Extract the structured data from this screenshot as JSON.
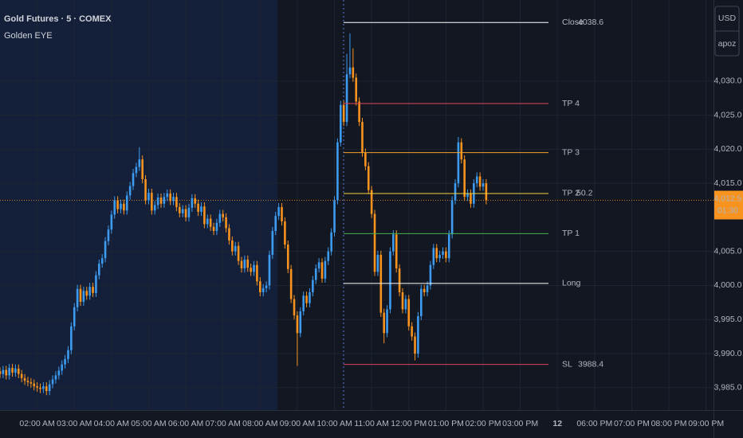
{
  "chart_data": {
    "type": "candlestick",
    "title": "Gold Futures · 5 · COMEX",
    "subtitle": "Golden EYE",
    "currency": "USD",
    "account": "apoz",
    "up_color": "#3d9bf0",
    "down_color": "#f7931e",
    "grid": true,
    "xlim": [
      60,
      1212
    ],
    "ylim": [
      3981.7,
      4041.9
    ],
    "xticks": [
      {
        "value": 120,
        "label": "02:00 AM"
      },
      {
        "value": 180,
        "label": "03:00 AM"
      },
      {
        "value": 240,
        "label": "04:00 AM"
      },
      {
        "value": 300,
        "label": "05:00 AM"
      },
      {
        "value": 360,
        "label": "06:00 AM"
      },
      {
        "value": 420,
        "label": "07:00 AM"
      },
      {
        "value": 480,
        "label": "08:00 AM"
      },
      {
        "value": 540,
        "label": "09:00 AM"
      },
      {
        "value": 600,
        "label": "10:00 AM"
      },
      {
        "value": 660,
        "label": "11:00 AM"
      },
      {
        "value": 720,
        "label": "12:00 PM"
      },
      {
        "value": 780,
        "label": "01:00 PM"
      },
      {
        "value": 840,
        "label": "02:00 PM"
      },
      {
        "value": 900,
        "label": "03:00 PM"
      },
      {
        "value": 960,
        "label": "12"
      },
      {
        "value": 1020,
        "label": "06:00 PM"
      },
      {
        "value": 1080,
        "label": "07:00 PM"
      },
      {
        "value": 1140,
        "label": "08:00 PM"
      },
      {
        "value": 1200,
        "label": "09:00 PM"
      }
    ],
    "yticks": [
      {
        "value": 3985,
        "label": "3,985.0"
      },
      {
        "value": 3990,
        "label": "3,990.0"
      },
      {
        "value": 3995,
        "label": "3,995.0"
      },
      {
        "value": 4000,
        "label": "4,000.0"
      },
      {
        "value": 4005,
        "label": "4,005.0"
      },
      {
        "value": 4015,
        "label": "4,015.0"
      },
      {
        "value": 4020,
        "label": "4,020.0"
      },
      {
        "value": 4025,
        "label": "4,025.0"
      },
      {
        "value": 4030,
        "label": "4,030.0"
      }
    ],
    "last_price": {
      "value": 4012.5,
      "label": "4,012.5",
      "countdown": "01:30",
      "color": "#f7931e"
    },
    "levels": [
      {
        "name": "Close",
        "value": 4038.6,
        "color": "#ffffff",
        "show_value": true
      },
      {
        "name": "TP 4",
        "value": 4026.7,
        "color": "#e0455a"
      },
      {
        "name": "TP 3",
        "value": 4019.5,
        "color": "#f5a02a"
      },
      {
        "name": "TP 2",
        "value": 4013.5,
        "color": "#f2d43a",
        "ratio": 50.2,
        "ratio_color": "#c25fe0"
      },
      {
        "name": "TP 1",
        "value": 4007.6,
        "color": "#4caf50"
      },
      {
        "name": "Long",
        "value": 4000.3,
        "color": "#ffffff"
      },
      {
        "name": "SL",
        "value": 3988.4,
        "color": "#e0455a",
        "show_value": true
      }
    ],
    "x": [
      60,
      65,
      70,
      75,
      80,
      85,
      90,
      95,
      100,
      105,
      110,
      115,
      120,
      125,
      130,
      135,
      140,
      145,
      150,
      155,
      160,
      165,
      170,
      175,
      180,
      185,
      190,
      195,
      200,
      205,
      210,
      215,
      220,
      225,
      230,
      235,
      240,
      245,
      250,
      255,
      260,
      265,
      270,
      275,
      280,
      285,
      290,
      295,
      300,
      305,
      310,
      315,
      320,
      325,
      330,
      335,
      340,
      345,
      350,
      355,
      360,
      365,
      370,
      375,
      380,
      385,
      390,
      395,
      400,
      405,
      410,
      415,
      420,
      425,
      430,
      435,
      440,
      445,
      450,
      455,
      460,
      465,
      470,
      475,
      480,
      485,
      490,
      495,
      500,
      505,
      510,
      515,
      520,
      525,
      530,
      535,
      540,
      545,
      550,
      555,
      560,
      565,
      570,
      575,
      580,
      585,
      590,
      595,
      600,
      605,
      610,
      615,
      620,
      625,
      630,
      635,
      640,
      645,
      650,
      655,
      660,
      665,
      670,
      675,
      680,
      685,
      690,
      695,
      700,
      705,
      710,
      715,
      720,
      725,
      730,
      735,
      740,
      745,
      750,
      755,
      760,
      765,
      770,
      775,
      780,
      785,
      790,
      795,
      800,
      805,
      810,
      815,
      820,
      825,
      830,
      835,
      840,
      845
    ],
    "open": [
      3987.4,
      3987.0,
      3987.6,
      3986.8,
      3987.9,
      3987.2,
      3987.8,
      3987.0,
      3986.4,
      3986.0,
      3985.8,
      3985.6,
      3985.2,
      3985.0,
      3984.8,
      3985.2,
      3984.5,
      3985.5,
      3986.2,
      3986.8,
      3987.5,
      3988.4,
      3989.2,
      3990.5,
      3994.0,
      3996.8,
      3999.5,
      3997.6,
      3999.2,
      3998.5,
      3999.8,
      3998.9,
      4001.5,
      4003.2,
      4004.0,
      4006.5,
      4008.2,
      4010.4,
      4012.5,
      4011.2,
      4012.0,
      4011.0,
      4013.2,
      4014.6,
      4016.5,
      4017.4,
      4018.5,
      4015.6,
      4012.5,
      4013.6,
      4011.0,
      4011.8,
      4012.9,
      4012.0,
      4013.0,
      4013.5,
      4012.4,
      4013.0,
      4011.5,
      4010.6,
      4011.2,
      4010.0,
      4011.4,
      4012.8,
      4012.0,
      4010.8,
      4011.6,
      4009.0,
      4009.8,
      4008.6,
      4008.0,
      4009.2,
      4010.5,
      4010.0,
      4008.4,
      4006.6,
      4005.0,
      4005.8,
      4003.6,
      4002.5,
      4003.8,
      4002.6,
      4002.0,
      4003.0,
      4000.6,
      3999.0,
      3999.6,
      4000.0,
      4004.5,
      4008.0,
      4010.2,
      4011.5,
      4009.4,
      4006.0,
      4002.4,
      3998.0,
      3995.6,
      3993.0,
      3996.2,
      3998.5,
      3997.4,
      3999.0,
      4000.8,
      4002.5,
      4003.4,
      4001.0,
      4003.6,
      4005.0,
      4007.8,
      4012.5,
      4021.0,
      4026.5,
      4024.0,
      4031.0,
      4032.0,
      4030.5,
      4027.0,
      4024.0,
      4019.5,
      4017.5,
      4014.0,
      4010.5,
      4002.0,
      4004.5,
      3996.0,
      3993.0,
      3996.5,
      4005.0,
      4007.5,
      4002.5,
      3999.0,
      3996.5,
      3998.0,
      3994.0,
      3992.5,
      3990.0,
      3995.5,
      3999.5,
      3999.0,
      4000.0,
      4003.0,
      4005.5,
      4004.0,
      4004.5,
      4005.0,
      4004.0,
      4007.5,
      4012.5,
      4015.0,
      4021.0,
      4018.5,
      4013.0,
      4013.5,
      4012.0,
      4015.0,
      4016.0,
      4014.5,
      4015.0
    ],
    "high": [
      3988.0,
      3988.2,
      3988.2,
      3988.5,
      3988.5,
      3988.4,
      3988.4,
      3987.6,
      3987.0,
      3986.6,
      3986.4,
      3986.2,
      3985.8,
      3985.6,
      3985.8,
      3985.8,
      3986.1,
      3986.8,
      3987.4,
      3988.1,
      3989.0,
      3989.8,
      3991.1,
      3994.6,
      3997.4,
      4000.1,
      4000.1,
      3999.8,
      3999.8,
      4000.4,
      4000.4,
      4002.1,
      4003.8,
      4004.6,
      4007.1,
      4008.8,
      4011.0,
      4013.1,
      4013.1,
      4012.6,
      4012.6,
      4013.8,
      4015.2,
      4017.1,
      4018.0,
      4020.3,
      4019.1,
      4016.2,
      4014.2,
      4014.2,
      4012.4,
      4013.5,
      4013.5,
      4013.6,
      4014.1,
      4014.1,
      4013.6,
      4013.6,
      4012.1,
      4011.8,
      4011.8,
      4012.0,
      4013.4,
      4013.4,
      4012.6,
      4012.2,
      4012.2,
      4010.4,
      4010.4,
      4009.2,
      4009.8,
      4011.1,
      4011.1,
      4010.6,
      4009.0,
      4007.2,
      4006.4,
      4006.4,
      4004.2,
      4004.4,
      4004.4,
      4003.2,
      4003.6,
      4003.6,
      4001.2,
      4000.2,
      4000.6,
      4005.1,
      4008.6,
      4010.8,
      4012.1,
      4012.1,
      4010.0,
      4006.6,
      4003.0,
      3998.6,
      3996.2,
      3996.8,
      3999.1,
      3999.1,
      3999.6,
      4001.4,
      4003.1,
      4004.0,
      4004.0,
      4004.2,
      4005.6,
      4008.4,
      4013.1,
      4021.6,
      4027.1,
      4027.1,
      4034.0,
      4037.0,
      4034.8,
      4031.1,
      4027.6,
      4024.6,
      4020.1,
      4018.1,
      4014.6,
      4011.1,
      4005.1,
      4005.1,
      3996.6,
      3997.1,
      4005.6,
      4008.1,
      4008.1,
      4003.1,
      3999.6,
      3998.6,
      3998.6,
      3994.6,
      3993.1,
      3996.1,
      4000.1,
      4000.1,
      4000.6,
      4003.6,
      4006.1,
      4006.1,
      4005.1,
      4005.6,
      4005.6,
      4008.1,
      4013.1,
      4015.6,
      4021.8,
      4021.6,
      4019.1,
      4014.1,
      4014.1,
      4015.6,
      4016.6,
      4016.6,
      4015.6,
      4015.6
    ],
    "low": [
      3986.4,
      3986.4,
      3986.2,
      3986.2,
      3986.6,
      3986.6,
      3986.4,
      3985.8,
      3985.4,
      3985.2,
      3985.0,
      3984.6,
      3984.4,
      3984.2,
      3984.2,
      3983.9,
      3983.9,
      3984.9,
      3985.6,
      3986.2,
      3986.9,
      3987.8,
      3988.6,
      3989.9,
      3993.4,
      3996.2,
      3997.0,
      3997.0,
      3997.9,
      3997.9,
      3998.3,
      3998.3,
      4000.9,
      4002.6,
      4003.4,
      4005.9,
      4007.6,
      4009.8,
      4010.6,
      4010.6,
      4010.4,
      4010.4,
      4012.6,
      4014.0,
      4015.9,
      4016.8,
      4015.0,
      4011.9,
      4011.9,
      4010.4,
      4010.4,
      4011.2,
      4011.4,
      4011.4,
      4012.4,
      4011.8,
      4011.8,
      4010.9,
      4010.0,
      4010.0,
      4009.4,
      4009.4,
      4010.8,
      4011.4,
      4010.2,
      4010.2,
      4008.4,
      4008.4,
      4008.0,
      4007.4,
      4007.4,
      4008.6,
      4009.4,
      4007.8,
      4006.0,
      4004.4,
      4004.4,
      4003.0,
      4001.9,
      4001.9,
      4002.0,
      4001.4,
      4001.4,
      4000.0,
      3998.4,
      3998.4,
      3999.0,
      3999.4,
      4003.9,
      4007.4,
      4009.6,
      4008.8,
      4005.4,
      4001.8,
      3997.4,
      3995.0,
      3988.2,
      3992.4,
      3995.6,
      3996.8,
      3996.8,
      3998.4,
      4000.2,
      4001.9,
      4000.4,
      4000.4,
      4003.0,
      4004.4,
      4007.2,
      4011.9,
      4020.4,
      4023.4,
      4023.4,
      4030.4,
      4029.9,
      4026.4,
      4023.4,
      4018.9,
      4016.9,
      4013.4,
      4009.9,
      4001.4,
      4001.4,
      3995.4,
      3991.5,
      3992.4,
      3995.9,
      4004.4,
      4001.9,
      3998.4,
      3995.9,
      3995.9,
      3993.4,
      3991.9,
      3989.0,
      3989.4,
      3994.9,
      3998.4,
      3998.4,
      3999.4,
      4002.4,
      4003.4,
      4003.4,
      4003.9,
      4003.4,
      4003.4,
      4006.9,
      4011.9,
      4014.4,
      4017.9,
      4012.4,
      4012.4,
      4011.4,
      4011.4,
      4014.4,
      4013.9,
      4013.9,
      4011.9
    ],
    "close": [
      3987.0,
      3987.6,
      3986.8,
      3987.9,
      3987.2,
      3987.8,
      3987.0,
      3986.4,
      3986.0,
      3985.8,
      3985.6,
      3985.2,
      3985.0,
      3984.8,
      3985.2,
      3984.5,
      3985.5,
      3986.2,
      3986.8,
      3987.5,
      3988.4,
      3989.2,
      3990.5,
      3994.0,
      3996.8,
      3999.5,
      3997.6,
      3999.2,
      3998.5,
      3999.8,
      3998.9,
      4001.5,
      4003.2,
      4004.0,
      4006.5,
      4008.2,
      4010.4,
      4012.5,
      4011.2,
      4012.0,
      4011.0,
      4013.2,
      4014.6,
      4016.5,
      4017.4,
      4018.5,
      4015.6,
      4012.5,
      4013.6,
      4011.0,
      4011.8,
      4012.9,
      4012.0,
      4013.0,
      4013.5,
      4012.4,
      4013.0,
      4011.5,
      4010.6,
      4011.2,
      4010.0,
      4011.4,
      4012.8,
      4012.0,
      4010.8,
      4011.6,
      4009.0,
      4009.8,
      4008.6,
      4008.0,
      4009.2,
      4010.5,
      4010.0,
      4008.4,
      4006.6,
      4005.0,
      4005.8,
      4003.6,
      4002.5,
      4003.8,
      4002.6,
      4002.0,
      4003.0,
      4000.6,
      3999.0,
      3999.6,
      4000.0,
      4004.5,
      4008.0,
      4010.2,
      4011.5,
      4009.4,
      4006.0,
      4002.4,
      3998.0,
      3995.6,
      3993.0,
      3996.2,
      3998.5,
      3997.4,
      3999.0,
      4000.8,
      4002.5,
      4003.4,
      4001.0,
      4003.6,
      4005.0,
      4007.8,
      4012.5,
      4021.0,
      4026.5,
      4024.0,
      4031.0,
      4032.0,
      4030.5,
      4027.0,
      4024.0,
      4019.5,
      4017.5,
      4014.0,
      4010.5,
      4002.0,
      4004.5,
      3996.0,
      3993.0,
      3996.5,
      4005.0,
      4007.5,
      4002.5,
      3999.0,
      3996.5,
      3998.0,
      3994.0,
      3992.5,
      3990.0,
      3995.5,
      3999.5,
      3999.0,
      4000.0,
      4003.0,
      4005.5,
      4004.0,
      4004.5,
      4005.0,
      4004.0,
      4007.5,
      4012.5,
      4015.0,
      4021.0,
      4018.5,
      4013.0,
      4013.5,
      4012.0,
      4015.0,
      4016.0,
      4014.5,
      4015.0,
      4012.5
    ]
  }
}
